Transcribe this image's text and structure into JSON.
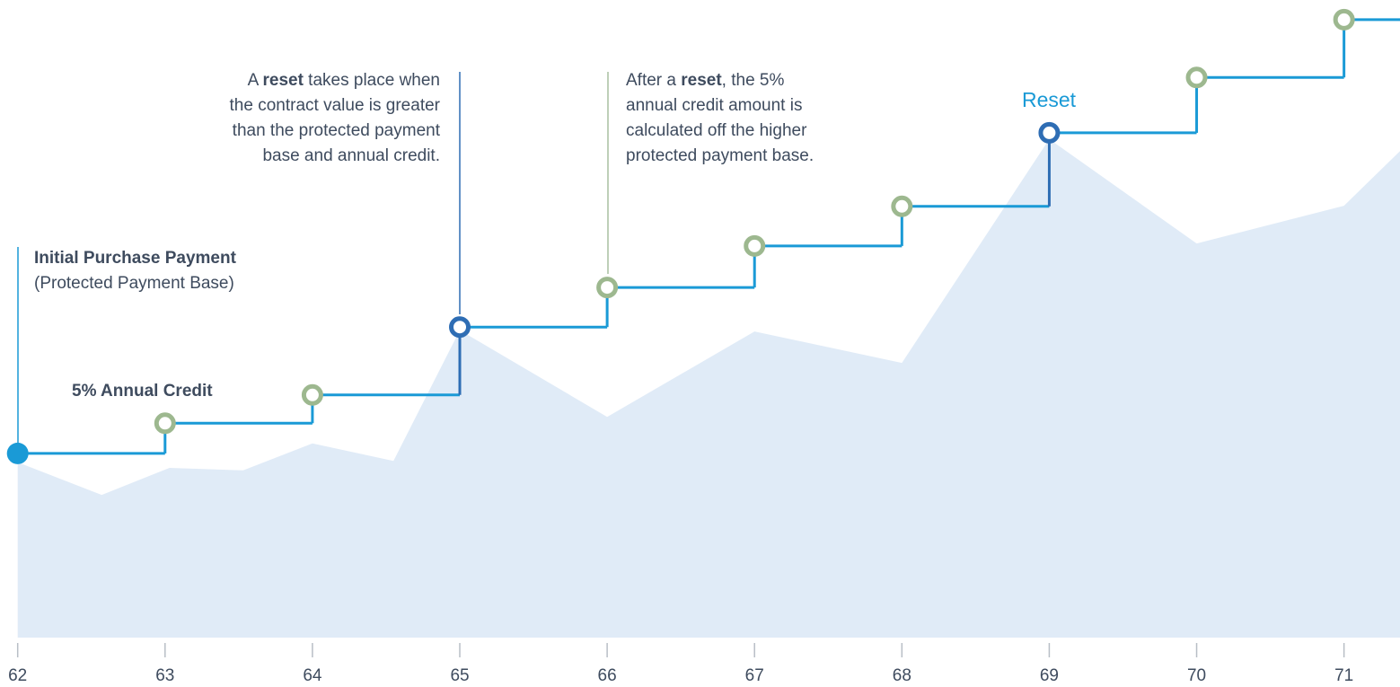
{
  "chart_data": {
    "type": "step-area",
    "xlim": [
      61.88,
      71.38
    ],
    "ylim": [
      0,
      100
    ],
    "xticks": [
      62,
      63,
      64,
      65,
      66,
      67,
      68,
      69,
      70,
      71
    ],
    "area": {
      "color": "#e0ebf7",
      "x": [
        62,
        62.57,
        63.03,
        63.53,
        64,
        64.55,
        65,
        66,
        67,
        68,
        69,
        70,
        71,
        71.38
      ],
      "values": [
        27.9,
        22.7,
        27,
        26.6,
        30.9,
        28.1,
        48.9,
        35.1,
        48.7,
        43.7,
        79.3,
        62.7,
        68.7,
        77.4
      ]
    },
    "steps": {
      "color": "#1a9ad6",
      "reset_color": "#2e6db4",
      "credit_color": "#9db88f",
      "x": [
        62,
        63,
        64,
        65,
        66,
        67,
        68,
        69,
        70,
        71
      ],
      "values": [
        29.3,
        34.1,
        38.6,
        49.4,
        55.7,
        62.3,
        68.6,
        80.3,
        89.1,
        98.3
      ],
      "resets": [
        3,
        7
      ]
    },
    "labels": {
      "initial_title": "Initial Purchase Payment",
      "initial_sub": "(Protected Payment Base)",
      "credit": "5% Annual Credit",
      "reset": "Reset"
    },
    "annotations": [
      {
        "lines": [
          [
            {
              "text": "A "
            },
            {
              "text": "reset",
              "bold": true
            },
            {
              "text": " takes place when"
            }
          ],
          [
            {
              "text": "the contract value is greater"
            }
          ],
          [
            {
              "text": "than the protected payment"
            }
          ],
          [
            {
              "text": "base and annual credit."
            }
          ]
        ]
      },
      {
        "lines": [
          [
            {
              "text": "After a "
            },
            {
              "text": "reset",
              "bold": true
            },
            {
              "text": ", the 5%"
            }
          ],
          [
            {
              "text": "annual credit amount is"
            }
          ],
          [
            {
              "text": "calculated off the higher"
            }
          ],
          [
            {
              "text": "protected payment base."
            }
          ]
        ]
      }
    ]
  }
}
